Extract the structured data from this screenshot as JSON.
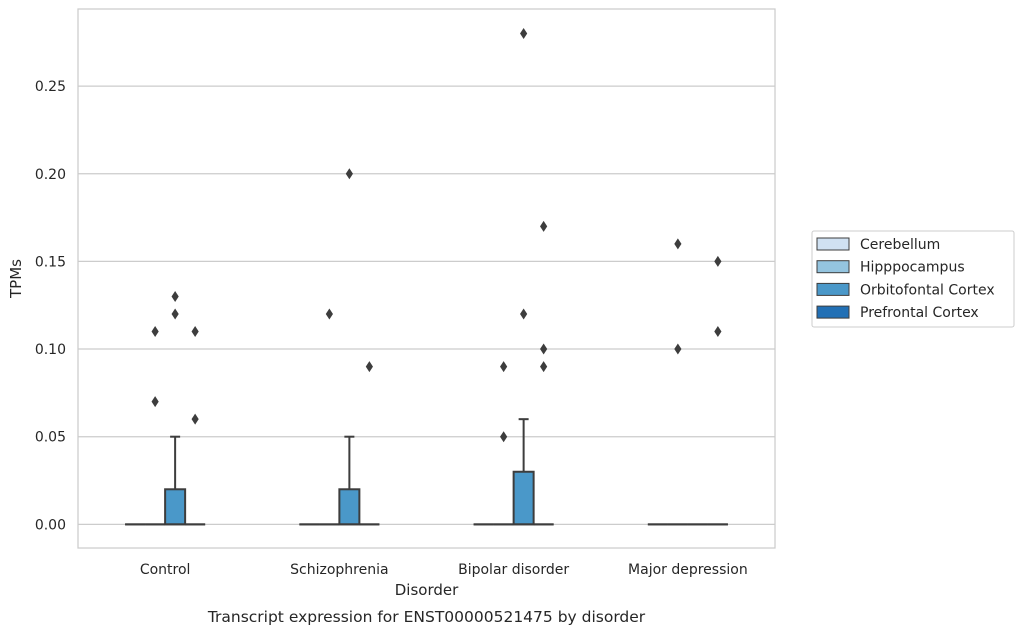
{
  "chart_data": {
    "type": "box",
    "caption": "Transcript expression for ENST00000521475 by disorder",
    "xlabel": "Disorder",
    "ylabel": "TPMs",
    "ylim": [
      -0.0135,
      0.294
    ],
    "yticks": [
      0.0,
      0.05,
      0.1,
      0.15,
      0.2,
      0.25
    ],
    "ytick_labels": [
      "0.00",
      "0.05",
      "0.10",
      "0.15",
      "0.20",
      "0.25"
    ],
    "grid": "horizontal",
    "legend_position": "right",
    "categories": [
      "Control",
      "Schizophrenia",
      "Bipolar disorder",
      "Major depression"
    ],
    "series": [
      {
        "name": "Cerebellum",
        "color": "#d0e1f2",
        "boxes": [
          {
            "q1": 0,
            "median": 0,
            "q3": 0,
            "whisker_low": 0,
            "whisker_high": 0,
            "outliers": []
          },
          {
            "q1": 0,
            "median": 0,
            "q3": 0,
            "whisker_low": 0,
            "whisker_high": 0,
            "outliers": []
          },
          {
            "q1": 0,
            "median": 0,
            "q3": 0,
            "whisker_low": 0,
            "whisker_high": 0,
            "outliers": []
          },
          {
            "q1": 0,
            "median": 0,
            "q3": 0,
            "whisker_low": 0,
            "whisker_high": 0,
            "outliers": []
          }
        ]
      },
      {
        "name": "Hipppocampus",
        "color": "#94c4df",
        "boxes": [
          {
            "q1": 0,
            "median": 0,
            "q3": 0,
            "whisker_low": 0,
            "whisker_high": 0,
            "outliers": [
              0.07,
              0.11
            ]
          },
          {
            "q1": 0,
            "median": 0,
            "q3": 0,
            "whisker_low": 0,
            "whisker_high": 0,
            "outliers": [
              0.12
            ]
          },
          {
            "q1": 0,
            "median": 0,
            "q3": 0,
            "whisker_low": 0,
            "whisker_high": 0,
            "outliers": [
              0.09,
              0.05
            ]
          },
          {
            "q1": 0,
            "median": 0,
            "q3": 0,
            "whisker_low": 0,
            "whisker_high": 0,
            "outliers": [
              0.1,
              0.16
            ]
          }
        ]
      },
      {
        "name": "Orbitofontal Cortex",
        "color": "#4a98c9",
        "boxes": [
          {
            "q1": 0,
            "median": 0,
            "q3": 0.02,
            "whisker_low": 0,
            "whisker_high": 0.05,
            "outliers": [
              0.13,
              0.12
            ]
          },
          {
            "q1": 0,
            "median": 0,
            "q3": 0.02,
            "whisker_low": 0,
            "whisker_high": 0.05,
            "outliers": [
              0.2
            ]
          },
          {
            "q1": 0,
            "median": 0,
            "q3": 0.03,
            "whisker_low": 0,
            "whisker_high": 0.06,
            "outliers": [
              0.28,
              0.12
            ]
          },
          {
            "q1": 0,
            "median": 0,
            "q3": 0,
            "whisker_low": 0,
            "whisker_high": 0,
            "outliers": []
          }
        ]
      },
      {
        "name": "Prefrontal Cortex",
        "color": "#2270b5",
        "boxes": [
          {
            "q1": 0,
            "median": 0,
            "q3": 0,
            "whisker_low": 0,
            "whisker_high": 0,
            "outliers": [
              0.11,
              0.06
            ]
          },
          {
            "q1": 0,
            "median": 0,
            "q3": 0,
            "whisker_low": 0,
            "whisker_high": 0,
            "outliers": [
              0.09
            ]
          },
          {
            "q1": 0,
            "median": 0,
            "q3": 0,
            "whisker_low": 0,
            "whisker_high": 0,
            "outliers": [
              0.17,
              0.1,
              0.09
            ]
          },
          {
            "q1": 0,
            "median": 0,
            "q3": 0,
            "whisker_low": 0,
            "whisker_high": 0,
            "outliers": [
              0.15,
              0.11
            ]
          }
        ]
      }
    ]
  }
}
